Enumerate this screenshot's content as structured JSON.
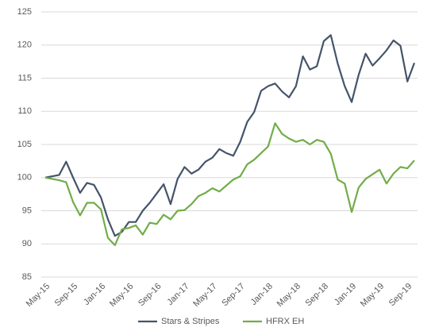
{
  "chart_data": {
    "type": "line",
    "categories": [
      "May-15",
      null,
      null,
      null,
      "Sep-15",
      null,
      null,
      null,
      "Jan-16",
      null,
      null,
      null,
      "May-16",
      null,
      null,
      null,
      "Sep-16",
      null,
      null,
      null,
      "Jan-17",
      null,
      null,
      null,
      "May-17",
      null,
      null,
      null,
      "Sep-17",
      null,
      null,
      null,
      "Jan-18",
      null,
      null,
      null,
      "May-18",
      null,
      null,
      null,
      "Sep-18",
      null,
      null,
      null,
      "Jan-19",
      null,
      null,
      null,
      "May-19",
      null,
      null,
      null,
      "Sep-19",
      null
    ],
    "series": [
      {
        "name": "Stars & Stripes",
        "color": "#44546a",
        "values": [
          100,
          100.2,
          100.4,
          102.4,
          100.0,
          97.7,
          99.2,
          98.9,
          97.0,
          93.7,
          91.2,
          91.8,
          93.3,
          93.3,
          95.0,
          96.2,
          97.6,
          99.0,
          96.0,
          99.8,
          101.6,
          100.6,
          101.2,
          102.4,
          103.0,
          104.3,
          103.7,
          103.3,
          105.4,
          108.4,
          109.9,
          113.1,
          113.8,
          114.2,
          113.0,
          112.1,
          113.8,
          118.3,
          116.3,
          116.8,
          120.6,
          121.5,
          117.2,
          113.8,
          111.4,
          115.5,
          118.7,
          116.9,
          118.0,
          119.2,
          120.7,
          119.9,
          114.5,
          117.3
        ]
      },
      {
        "name": "HFRX EH",
        "color": "#70ad47",
        "values": [
          100,
          99.8,
          99.6,
          99.3,
          96.3,
          94.3,
          96.2,
          96.2,
          95.2,
          90.9,
          89.8,
          92.2,
          92.4,
          92.8,
          91.4,
          93.2,
          93.0,
          94.4,
          93.7,
          95.0,
          95.1,
          96.0,
          97.2,
          97.7,
          98.4,
          97.9,
          98.8,
          99.7,
          100.2,
          102.0,
          102.7,
          103.7,
          104.7,
          108.2,
          106.6,
          105.9,
          105.4,
          105.7,
          105.0,
          105.7,
          105.4,
          103.6,
          99.7,
          99.1,
          94.8,
          98.5,
          99.8,
          100.5,
          101.2,
          99.1,
          100.6,
          101.6,
          101.4,
          102.6
        ]
      }
    ],
    "ylim": [
      85,
      125
    ],
    "yticks": [
      85,
      90,
      95,
      100,
      105,
      110,
      115,
      120,
      125
    ],
    "grid": true,
    "legend": "bottom"
  }
}
